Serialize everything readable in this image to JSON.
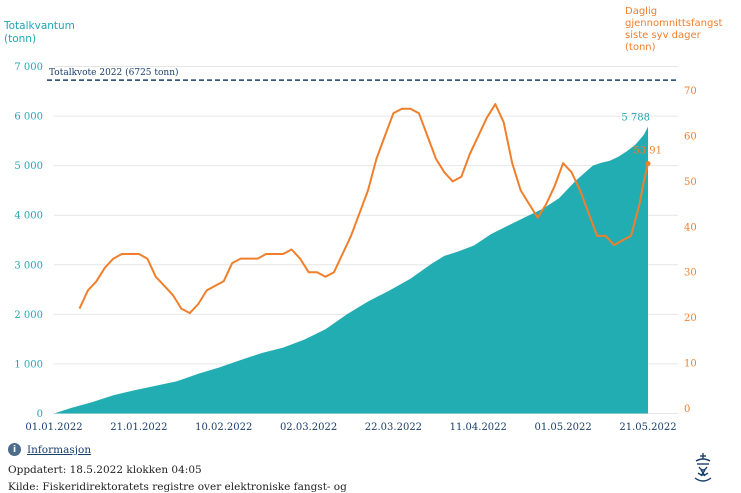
{
  "chart_data": {
    "type": "area",
    "left_axis_title": "Totalkvantum\n(tonn)",
    "right_axis_title": "Daglig\ngjennomnittsfangst\nsiste syv dager\n(tonn)",
    "y_left": {
      "lim": [
        0,
        7000
      ],
      "ticks": [
        0,
        1000,
        2000,
        3000,
        4000,
        5000,
        6000,
        7000
      ],
      "tick_labels": [
        "0",
        "1 000",
        "2 000",
        "3 000",
        "4 000",
        "5 000",
        "6 000",
        "7 000"
      ]
    },
    "y_right": {
      "lim": [
        0,
        75
      ],
      "ticks": [
        0,
        10,
        20,
        30,
        40,
        50,
        60,
        70
      ],
      "tick_labels": [
        "0",
        "10",
        "20",
        "30",
        "40",
        "50",
        "60",
        "70"
      ]
    },
    "x_range": [
      "2022-01-01",
      "2022-05-21"
    ],
    "x_ticks": [
      {
        "date": "2022-01-01",
        "label": "01.01.2022"
      },
      {
        "date": "2022-01-21",
        "label": "21.01.2022"
      },
      {
        "date": "2022-02-10",
        "label": "10.02.2022"
      },
      {
        "date": "2022-03-02",
        "label": "02.03.2022"
      },
      {
        "date": "2022-03-22",
        "label": "22.03.2022"
      },
      {
        "date": "2022-04-11",
        "label": "11.04.2022"
      },
      {
        "date": "2022-05-01",
        "label": "01.05.2022"
      },
      {
        "date": "2022-05-21",
        "label": "21.05.2022"
      }
    ],
    "reference_line": {
      "value": 6725,
      "label": "Totalkvote 2022 (6725 tonn)"
    },
    "series": [
      {
        "kind": "area",
        "axis": "left",
        "color": "#22adb2",
        "end_label": "5 788",
        "points": [
          [
            "2022-01-01",
            0
          ],
          [
            "2022-01-05",
            110
          ],
          [
            "2022-01-10",
            230
          ],
          [
            "2022-01-15",
            370
          ],
          [
            "2022-01-20",
            470
          ],
          [
            "2022-01-25",
            560
          ],
          [
            "2022-01-30",
            650
          ],
          [
            "2022-02-04",
            800
          ],
          [
            "2022-02-09",
            930
          ],
          [
            "2022-02-14",
            1080
          ],
          [
            "2022-02-19",
            1220
          ],
          [
            "2022-02-24",
            1330
          ],
          [
            "2022-03-01",
            1490
          ],
          [
            "2022-03-06",
            1700
          ],
          [
            "2022-03-11",
            2000
          ],
          [
            "2022-03-16",
            2260
          ],
          [
            "2022-03-21",
            2480
          ],
          [
            "2022-03-26",
            2720
          ],
          [
            "2022-03-31",
            3020
          ],
          [
            "2022-04-03",
            3180
          ],
          [
            "2022-04-06",
            3260
          ],
          [
            "2022-04-10",
            3390
          ],
          [
            "2022-04-14",
            3620
          ],
          [
            "2022-04-18",
            3790
          ],
          [
            "2022-04-22",
            3960
          ],
          [
            "2022-04-26",
            4120
          ],
          [
            "2022-04-30",
            4340
          ],
          [
            "2022-05-04",
            4700
          ],
          [
            "2022-05-08",
            5000
          ],
          [
            "2022-05-10",
            5060
          ],
          [
            "2022-05-12",
            5100
          ],
          [
            "2022-05-14",
            5180
          ],
          [
            "2022-05-16",
            5290
          ],
          [
            "2022-05-18",
            5420
          ],
          [
            "2022-05-20",
            5620
          ],
          [
            "2022-05-21",
            5788
          ]
        ]
      },
      {
        "kind": "line",
        "axis": "right",
        "color": "#f07f2c",
        "end_label": "53.91",
        "points": [
          [
            "2022-01-07",
            22
          ],
          [
            "2022-01-09",
            26
          ],
          [
            "2022-01-11",
            28
          ],
          [
            "2022-01-13",
            31
          ],
          [
            "2022-01-15",
            33
          ],
          [
            "2022-01-17",
            34
          ],
          [
            "2022-01-19",
            34
          ],
          [
            "2022-01-21",
            34
          ],
          [
            "2022-01-23",
            33
          ],
          [
            "2022-01-25",
            29
          ],
          [
            "2022-01-27",
            27
          ],
          [
            "2022-01-29",
            25
          ],
          [
            "2022-01-31",
            22
          ],
          [
            "2022-02-02",
            21
          ],
          [
            "2022-02-04",
            23
          ],
          [
            "2022-02-06",
            26
          ],
          [
            "2022-02-08",
            27
          ],
          [
            "2022-02-10",
            28
          ],
          [
            "2022-02-12",
            32
          ],
          [
            "2022-02-14",
            33
          ],
          [
            "2022-02-16",
            33
          ],
          [
            "2022-02-18",
            33
          ],
          [
            "2022-02-20",
            34
          ],
          [
            "2022-02-22",
            34
          ],
          [
            "2022-02-24",
            34
          ],
          [
            "2022-02-26",
            35
          ],
          [
            "2022-02-28",
            33
          ],
          [
            "2022-03-02",
            30
          ],
          [
            "2022-03-04",
            30
          ],
          [
            "2022-03-06",
            29
          ],
          [
            "2022-03-08",
            30
          ],
          [
            "2022-03-10",
            34
          ],
          [
            "2022-03-12",
            38
          ],
          [
            "2022-03-14",
            43
          ],
          [
            "2022-03-16",
            48
          ],
          [
            "2022-03-18",
            55
          ],
          [
            "2022-03-20",
            60
          ],
          [
            "2022-03-22",
            65
          ],
          [
            "2022-03-24",
            66
          ],
          [
            "2022-03-26",
            66
          ],
          [
            "2022-03-28",
            65
          ],
          [
            "2022-03-30",
            60
          ],
          [
            "2022-04-01",
            55
          ],
          [
            "2022-04-03",
            52
          ],
          [
            "2022-04-05",
            50
          ],
          [
            "2022-04-07",
            51
          ],
          [
            "2022-04-09",
            56
          ],
          [
            "2022-04-11",
            60
          ],
          [
            "2022-04-13",
            64
          ],
          [
            "2022-04-15",
            67
          ],
          [
            "2022-04-17",
            63
          ],
          [
            "2022-04-19",
            54
          ],
          [
            "2022-04-21",
            48
          ],
          [
            "2022-04-23",
            45
          ],
          [
            "2022-04-25",
            42
          ],
          [
            "2022-04-27",
            45
          ],
          [
            "2022-04-29",
            49
          ],
          [
            "2022-05-01",
            54
          ],
          [
            "2022-05-03",
            52
          ],
          [
            "2022-05-05",
            48
          ],
          [
            "2022-05-07",
            43
          ],
          [
            "2022-05-09",
            38
          ],
          [
            "2022-05-11",
            38
          ],
          [
            "2022-05-13",
            36
          ],
          [
            "2022-05-15",
            37
          ],
          [
            "2022-05-17",
            38
          ],
          [
            "2022-05-19",
            45
          ],
          [
            "2022-05-20",
            50
          ],
          [
            "2022-05-21",
            53.91
          ]
        ]
      }
    ]
  },
  "footer": {
    "info_link": "Informasjon",
    "updated": "Oppdatert: 18.5.2022 klokken 04:05",
    "source": "Kilde: Fiskeridirektoratets registre over elektroniske fangst- og"
  },
  "icons": {
    "info": "info-icon",
    "logo": "fiskeridirektoratet-logo"
  }
}
